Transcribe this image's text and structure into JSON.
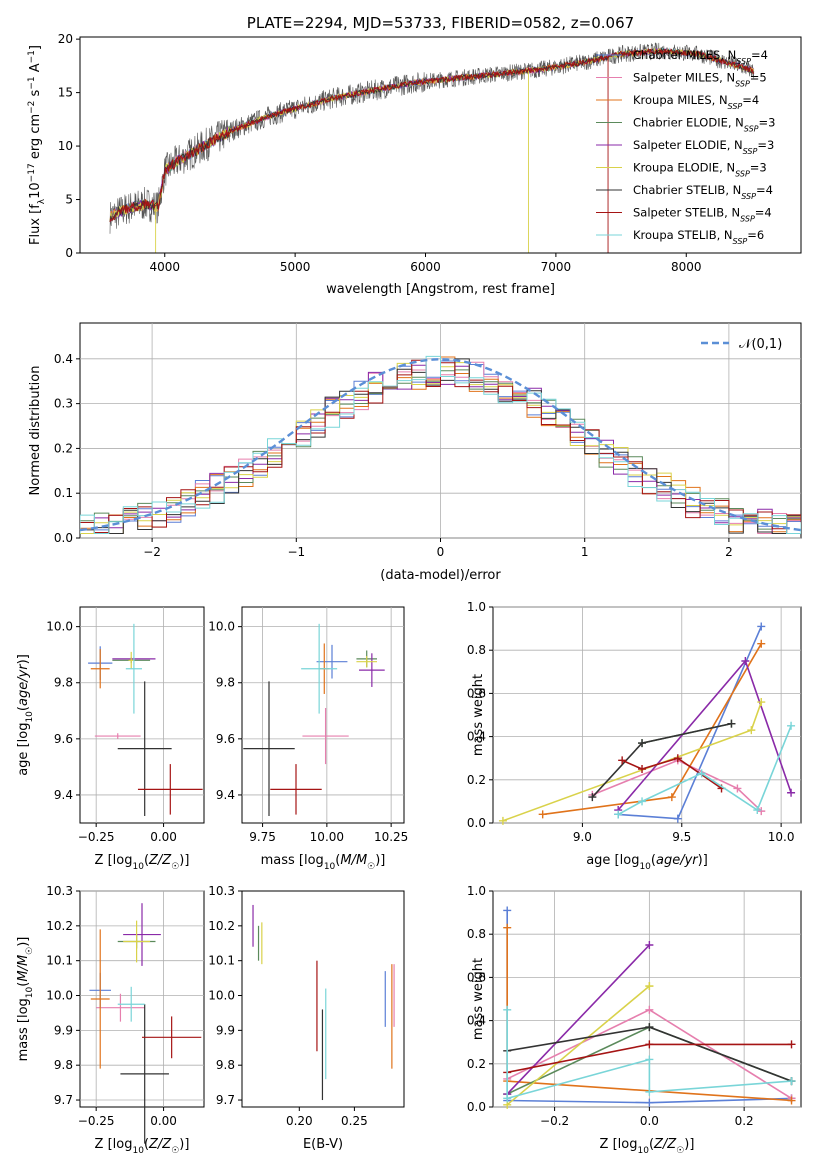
{
  "colors": {
    "palette": [
      "#5b7fd6",
      "#e67fae",
      "#e0731b",
      "#5b8a5b",
      "#8a2aa8",
      "#d9d24a",
      "#333333",
      "#a51414",
      "#79d5d8"
    ],
    "gauss": "#5b8fd6"
  },
  "chart_data": [
    {
      "id": "spectrum",
      "type": "line",
      "title": "PLATE=2294, MJD=53733, FIBERID=0582, z=0.067",
      "xlabel": "wavelength [Angstrom, rest frame]",
      "ylabel": "Flux [f_λ10^-17 erg cm^-2 s^-1 A^-1]",
      "xlim": [
        3350,
        8880
      ],
      "ylim": [
        0,
        20.2
      ],
      "xticks": [
        4000,
        5000,
        6000,
        7000,
        8000
      ],
      "yticks": [
        0,
        5,
        10,
        15,
        20
      ],
      "grid": false,
      "legend_position": "upper-right",
      "continuum_x": [
        3580,
        3700,
        3850,
        3950,
        4000,
        4100,
        4300,
        4500,
        4800,
        5000,
        5300,
        5600,
        5900,
        6200,
        6600,
        6900,
        7200,
        7500,
        7800,
        8100,
        8400,
        8520
      ],
      "continuum_y": [
        3.4,
        4.1,
        4.6,
        4.3,
        7.7,
        8.6,
        10.0,
        11.4,
        12.8,
        13.5,
        14.5,
        15.2,
        15.9,
        16.3,
        16.8,
        17.2,
        17.8,
        18.6,
        18.9,
        18.6,
        17.5,
        17.0
      ],
      "series": [
        {
          "name": "Chabrier MILES, N_SSP=4"
        },
        {
          "name": "Salpeter MILES, N_SSP=5"
        },
        {
          "name": "Kroupa MILES, N_SSP=4"
        },
        {
          "name": "Chabrier ELODIE, N_SSP=3"
        },
        {
          "name": "Salpeter ELODIE, N_SSP=3"
        },
        {
          "name": "Kroupa ELODIE, N_SSP=3"
        },
        {
          "name": "Chabrier STELIB, N_SSP=4"
        },
        {
          "name": "Salpeter STELIB, N_SSP=4"
        },
        {
          "name": "Kroupa STELIB, N_SSP=6"
        }
      ]
    },
    {
      "id": "residuals",
      "type": "histogram",
      "xlabel": "(data-model)/error",
      "ylabel": "Normed distribution",
      "xlim": [
        -2.5,
        2.5
      ],
      "ylim": [
        0,
        0.48
      ],
      "xticks": [
        -2,
        -1,
        0,
        1,
        2
      ],
      "yticks": [
        0.0,
        0.1,
        0.2,
        0.3,
        0.4
      ],
      "grid": true,
      "bin_width": 0.1,
      "legend_position": "upper-right",
      "legend_label": "𝒩(0,1)"
    },
    {
      "id": "age-vs-Z",
      "type": "errorbar",
      "xlabel": "Z [log10(Z/Z☉)]",
      "ylabel": "age  [log10(age/yr)]",
      "xlim": [
        -0.31,
        0.15
      ],
      "ylim": [
        9.3,
        10.07
      ],
      "xticks": [
        -0.25,
        0.0
      ],
      "yticks": [
        9.4,
        9.6,
        9.8,
        10.0
      ],
      "grid": true,
      "points": [
        {
          "x": -0.235,
          "xerr": 0.045,
          "y": 9.87,
          "yerr": 0.06
        },
        {
          "x": -0.17,
          "xerr": 0.085,
          "y": 9.61,
          "yerr": 0.01
        },
        {
          "x": -0.235,
          "xerr": 0.035,
          "y": 9.85,
          "yerr": 0.07
        },
        {
          "x": -0.12,
          "xerr": 0.07,
          "y": 9.88,
          "yerr": 0.01
        },
        {
          "x": -0.11,
          "xerr": 0.08,
          "y": 9.885,
          "yerr": 0.005
        },
        {
          "x": -0.12,
          "xerr": 0.01,
          "y": 9.88,
          "yerr": 0.03
        },
        {
          "x": -0.07,
          "xerr": 0.1,
          "y": 9.565,
          "yerr": 0.24
        },
        {
          "x": 0.025,
          "xerr": 0.12,
          "y": 9.42,
          "yerr": 0.09
        },
        {
          "x": -0.11,
          "xerr": 0.03,
          "y": 9.85,
          "yerr": 0.16
        }
      ]
    },
    {
      "id": "age-vs-mass",
      "type": "errorbar",
      "xlabel": "mass [log10(M/M☉)]",
      "ylabel": "",
      "xlim": [
        9.67,
        10.3
      ],
      "ylim": [
        9.3,
        10.07
      ],
      "xticks": [
        9.75,
        10.0,
        10.25
      ],
      "yticks": [
        9.4,
        9.6,
        9.8,
        10.0
      ],
      "grid": true,
      "points": [
        {
          "x": 10.02,
          "xerr": 0.06,
          "y": 9.875,
          "yerr": 0.06
        },
        {
          "x": 9.995,
          "xerr": 0.09,
          "y": 9.61,
          "yerr": 0.1
        },
        {
          "x": 9.99,
          "xerr": 0.02,
          "y": 9.85,
          "yerr": 0.09
        },
        {
          "x": 10.155,
          "xerr": 0.04,
          "y": 9.885,
          "yerr": 0.03
        },
        {
          "x": 10.175,
          "xerr": 0.05,
          "y": 9.845,
          "yerr": 0.06
        },
        {
          "x": 10.155,
          "xerr": 0.04,
          "y": 9.875,
          "yerr": 0.02
        },
        {
          "x": 9.775,
          "xerr": 0.1,
          "y": 9.565,
          "yerr": 0.24
        },
        {
          "x": 9.88,
          "xerr": 0.1,
          "y": 9.42,
          "yerr": 0.09
        },
        {
          "x": 9.97,
          "xerr": 0.07,
          "y": 9.85,
          "yerr": 0.16
        }
      ]
    },
    {
      "id": "weight-vs-age",
      "type": "line",
      "xlabel": "age  [log10(age/yr)]",
      "ylabel": "mass weight",
      "xlim": [
        8.55,
        10.1
      ],
      "ylim": [
        0,
        1.0
      ],
      "xticks": [
        9.0,
        9.5,
        10.0
      ],
      "yticks": [
        0.0,
        0.2,
        0.4,
        0.6,
        0.8,
        1.0
      ],
      "grid": true,
      "series": [
        {
          "x": [
            9.18,
            9.48,
            9.9
          ],
          "y": [
            0.04,
            0.02,
            0.91
          ]
        },
        {
          "x": [
            9.05,
            9.48,
            9.78,
            9.9
          ],
          "y": [
            0.13,
            0.29,
            0.16,
            0.055
          ]
        },
        {
          "x": [
            8.8,
            9.45,
            9.9
          ],
          "y": [
            0.04,
            0.12,
            0.83
          ]
        },
        {
          "x": [
            9.3,
            9.75
          ],
          "y": [
            0.37,
            0.46
          ]
        },
        {
          "x": [
            9.18,
            9.82,
            10.05
          ],
          "y": [
            0.06,
            0.75,
            0.14
          ]
        },
        {
          "x": [
            8.6,
            9.85,
            9.9
          ],
          "y": [
            0.01,
            0.43,
            0.56
          ]
        },
        {
          "x": [
            9.05,
            9.3,
            9.75
          ],
          "y": [
            0.12,
            0.37,
            0.46
          ]
        },
        {
          "x": [
            9.2,
            9.3,
            9.48,
            9.7
          ],
          "y": [
            0.29,
            0.25,
            0.3,
            0.16
          ]
        },
        {
          "x": [
            9.18,
            9.3,
            9.6,
            9.88,
            10.05
          ],
          "y": [
            0.04,
            0.1,
            0.23,
            0.06,
            0.45
          ]
        }
      ]
    },
    {
      "id": "mass-vs-Z",
      "type": "errorbar",
      "xlabel": "Z [log10(Z/Z☉)]",
      "ylabel": "mass [log10(M/M☉)]",
      "xlim": [
        -0.31,
        0.15
      ],
      "ylim": [
        9.68,
        10.3
      ],
      "xticks": [
        -0.25,
        0.0
      ],
      "yticks": [
        9.7,
        9.8,
        9.9,
        10.0,
        10.1,
        10.2,
        10.3
      ],
      "grid": true,
      "points": [
        {
          "x": -0.235,
          "xerr": 0.04,
          "y": 10.015,
          "yerr": 0.05
        },
        {
          "x": -0.16,
          "xerr": 0.09,
          "y": 9.965,
          "yerr": 0.04
        },
        {
          "x": -0.235,
          "xerr": 0.035,
          "y": 9.99,
          "yerr": 0.2
        },
        {
          "x": -0.1,
          "xerr": 0.07,
          "y": 10.155,
          "yerr": 0.02
        },
        {
          "x": -0.08,
          "xerr": 0.07,
          "y": 10.175,
          "yerr": 0.09
        },
        {
          "x": -0.1,
          "xerr": 0.05,
          "y": 10.155,
          "yerr": 0.06
        },
        {
          "x": -0.07,
          "xerr": 0.09,
          "y": 9.775,
          "yerr": 0.2
        },
        {
          "x": 0.03,
          "xerr": 0.11,
          "y": 9.88,
          "yerr": 0.06
        },
        {
          "x": -0.12,
          "xerr": 0.05,
          "y": 9.975,
          "yerr": 0.05
        }
      ]
    },
    {
      "id": "mass-vs-EBV",
      "type": "errorbar",
      "xlabel": "E(B-V)",
      "ylabel": "",
      "xlim": [
        0.148,
        0.295
      ],
      "ylim": [
        9.68,
        10.3
      ],
      "xticks": [
        0.2,
        0.25
      ],
      "yticks": [
        9.7,
        9.8,
        9.9,
        10.0,
        10.1,
        10.2,
        10.3
      ],
      "grid": false,
      "points": [
        {
          "x": 0.278,
          "y": 9.99,
          "yerr": 0.08
        },
        {
          "x": 0.286,
          "y": 10.0,
          "yerr": 0.09
        },
        {
          "x": 0.284,
          "y": 9.94,
          "yerr": 0.15
        },
        {
          "x": 0.163,
          "y": 10.15,
          "yerr": 0.05
        },
        {
          "x": 0.158,
          "y": 10.2,
          "yerr": 0.06
        },
        {
          "x": 0.166,
          "y": 10.15,
          "yerr": 0.06
        },
        {
          "x": 0.221,
          "y": 9.83,
          "yerr": 0.13
        },
        {
          "x": 0.216,
          "y": 9.97,
          "yerr": 0.13
        },
        {
          "x": 0.224,
          "y": 9.89,
          "yerr": 0.13
        }
      ]
    },
    {
      "id": "weight-vs-Z",
      "type": "line",
      "xlabel": "Z [log10(Z/Z☉)]",
      "ylabel": "mass weight",
      "xlim": [
        -0.33,
        0.32
      ],
      "ylim": [
        0,
        1.0
      ],
      "xticks": [
        -0.2,
        0.0,
        0.2
      ],
      "yticks": [
        0.0,
        0.2,
        0.4,
        0.6,
        0.8,
        1.0
      ],
      "grid": true,
      "series": [
        {
          "x": [
            -0.3,
            -0.3,
            0.0,
            0.3
          ],
          "y": [
            0.91,
            0.03,
            0.02,
            0.04
          ]
        },
        {
          "x": [
            -0.3,
            0.0,
            0.3
          ],
          "y": [
            0.13,
            0.45,
            0.04
          ]
        },
        {
          "x": [
            -0.3,
            -0.3,
            0.3
          ],
          "y": [
            0.83,
            0.12,
            0.03
          ]
        },
        {
          "x": [
            -0.3,
            0.0,
            0.3
          ],
          "y": [
            0.06,
            0.37,
            0.12
          ]
        },
        {
          "x": [
            -0.3,
            0.0
          ],
          "y": [
            0.06,
            0.75
          ]
        },
        {
          "x": [
            -0.3,
            0.0,
            0.0
          ],
          "y": [
            0.01,
            0.56,
            0.56
          ]
        },
        {
          "x": [
            -0.3,
            0.0,
            0.3
          ],
          "y": [
            0.26,
            0.37,
            0.12
          ]
        },
        {
          "x": [
            -0.3,
            0.0,
            0.3
          ],
          "y": [
            0.16,
            0.29,
            0.29
          ]
        },
        {
          "x": [
            -0.3,
            -0.3,
            0.0,
            0.0,
            0.3
          ],
          "y": [
            0.45,
            0.04,
            0.22,
            0.07,
            0.12
          ]
        }
      ]
    }
  ]
}
